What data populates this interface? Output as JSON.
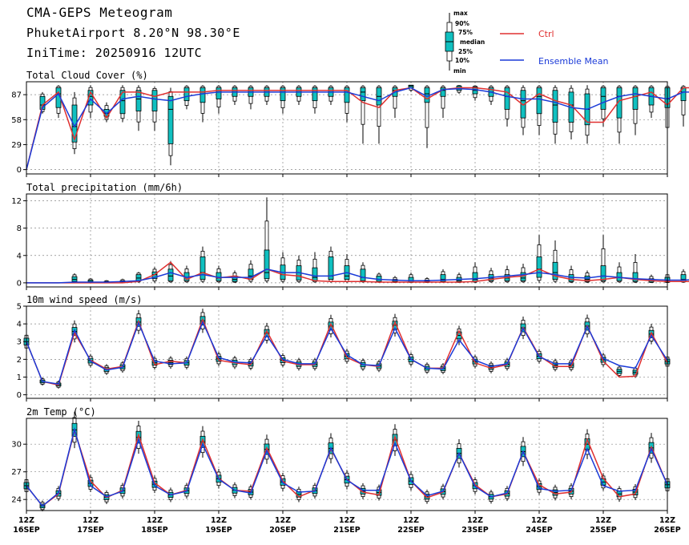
{
  "header": {
    "title": "CMA-GEPS Meteogram",
    "location": "PhuketAirport 8.20°N 98.30°E",
    "init": "IniTime: 20250916 12UTC"
  },
  "legend": {
    "box_labels": [
      "max",
      "90%",
      "75%",
      "median",
      "25%",
      "10%",
      "min"
    ],
    "ctrl_label": "Ctrl",
    "mean_label": "Ensemble Mean"
  },
  "colors": {
    "ctrl": "#e03030",
    "mean": "#1a3ad8",
    "box": "#10c0c0",
    "grid": "#888888"
  },
  "x_axis": {
    "labels": [
      [
        "12Z",
        "16SEP"
      ],
      [
        "12Z",
        "17SEP"
      ],
      [
        "12Z",
        "18SEP"
      ],
      [
        "12Z",
        "19SEP"
      ],
      [
        "12Z",
        "20SEP"
      ],
      [
        "12Z",
        "21SEP"
      ],
      [
        "12Z",
        "22SEP"
      ],
      [
        "12Z",
        "23SEP"
      ],
      [
        "12Z",
        "24SEP"
      ],
      [
        "12Z",
        "25SEP"
      ],
      [
        "12Z",
        "26SEP"
      ]
    ]
  },
  "chart_data": [
    {
      "type": "line",
      "title": "Total Cloud Cover (%)",
      "ylim": [
        -5,
        102
      ],
      "yticks": [
        0,
        29,
        58,
        87
      ],
      "ctrl": [
        0,
        75,
        90,
        35,
        90,
        60,
        90,
        90,
        85,
        90,
        90,
        90,
        92,
        92,
        92,
        92,
        92,
        92,
        92,
        92,
        92,
        78,
        72,
        92,
        95,
        82,
        93,
        95,
        95,
        93,
        90,
        75,
        88,
        80,
        75,
        55,
        55,
        80,
        85,
        90,
        75,
        95,
        95,
        95,
        95
      ],
      "mean": [
        0,
        72,
        88,
        50,
        82,
        65,
        82,
        85,
        82,
        80,
        85,
        88,
        90,
        90,
        90,
        90,
        90,
        90,
        90,
        90,
        90,
        85,
        80,
        90,
        95,
        85,
        93,
        94,
        93,
        90,
        85,
        82,
        82,
        78,
        72,
        70,
        78,
        85,
        88,
        85,
        82,
        90,
        90,
        88,
        85
      ],
      "boxes": [
        [
          null,
          null,
          null,
          null,
          null
        ],
        [
          65,
          70,
          75,
          85,
          90
        ],
        [
          60,
          72,
          88,
          95,
          98
        ],
        [
          18,
          32,
          50,
          75,
          90
        ],
        [
          60,
          75,
          85,
          92,
          98
        ],
        [
          55,
          62,
          65,
          70,
          78
        ],
        [
          55,
          65,
          80,
          92,
          98
        ],
        [
          45,
          68,
          82,
          92,
          98
        ],
        [
          45,
          68,
          82,
          92,
          96
        ],
        [
          5,
          30,
          70,
          85,
          95
        ],
        [
          70,
          80,
          90,
          95,
          98
        ],
        [
          55,
          78,
          90,
          95,
          98
        ],
        [
          65,
          82,
          90,
          95,
          98
        ],
        [
          75,
          85,
          90,
          95,
          98
        ],
        [
          70,
          85,
          90,
          95,
          98
        ],
        [
          75,
          85,
          90,
          95,
          98
        ],
        [
          65,
          80,
          90,
          95,
          98
        ],
        [
          75,
          85,
          90,
          95,
          98
        ],
        [
          65,
          80,
          90,
          95,
          98
        ],
        [
          75,
          85,
          90,
          95,
          98
        ],
        [
          55,
          78,
          90,
          95,
          98
        ],
        [
          30,
          80,
          90,
          95,
          98
        ],
        [
          30,
          75,
          85,
          95,
          98
        ],
        [
          60,
          85,
          92,
          95,
          98
        ],
        [
          90,
          95,
          97,
          98,
          98
        ],
        [
          25,
          78,
          88,
          95,
          98
        ],
        [
          60,
          85,
          92,
          95,
          98
        ],
        [
          88,
          92,
          95,
          97,
          98
        ],
        [
          80,
          88,
          92,
          96,
          98
        ],
        [
          75,
          85,
          90,
          95,
          98
        ],
        [
          50,
          70,
          85,
          95,
          98
        ],
        [
          40,
          60,
          80,
          92,
          98
        ],
        [
          40,
          65,
          85,
          95,
          98
        ],
        [
          30,
          55,
          75,
          92,
          98
        ],
        [
          35,
          55,
          75,
          90,
          98
        ],
        [
          30,
          52,
          70,
          88,
          98
        ],
        [
          50,
          70,
          85,
          95,
          98
        ],
        [
          30,
          60,
          85,
          95,
          98
        ],
        [
          40,
          70,
          85,
          95,
          98
        ],
        [
          60,
          75,
          85,
          95,
          98
        ],
        [
          30,
          72,
          82,
          95,
          98
        ],
        [
          50,
          80,
          90,
          95,
          98
        ],
        [
          50,
          82,
          90,
          96,
          98
        ],
        [
          65,
          85,
          90,
          95,
          98
        ],
        [
          65,
          75,
          85,
          95,
          98
        ]
      ]
    },
    {
      "type": "line",
      "title": "Total precipitation (mm/6h)",
      "ylim": [
        -0.6,
        13
      ],
      "yticks": [
        0,
        4,
        8,
        12
      ],
      "ctrl": [
        0,
        0,
        0,
        0,
        0,
        0,
        0,
        0.2,
        1.2,
        3,
        0.5,
        1.5,
        0.7,
        1,
        0.5,
        2,
        1.2,
        1,
        0.3,
        0.2,
        0.2,
        0.2,
        0.1,
        0.1,
        0.1,
        0.1,
        0.1,
        0.1,
        0.2,
        0.5,
        0.8,
        1,
        2,
        1,
        0.5,
        0.3,
        0.5,
        0.8,
        0.5,
        0.3,
        0.2,
        0.2,
        0.2,
        0.3,
        0.3
      ],
      "mean": [
        0,
        0,
        0,
        0.1,
        0.1,
        0.1,
        0.2,
        0.3,
        0.8,
        1.5,
        0.8,
        1.2,
        0.8,
        0.8,
        0.8,
        2,
        1.5,
        1.5,
        1,
        1,
        1.5,
        0.8,
        0.5,
        0.4,
        0.3,
        0.3,
        0.4,
        0.5,
        0.6,
        0.8,
        1,
        1.2,
        1.5,
        1.2,
        0.8,
        0.7,
        1,
        0.8,
        0.6,
        0.5,
        0.4,
        0.4,
        0.5,
        0.5,
        0.5
      ],
      "boxes": [
        [
          null,
          null,
          null,
          null,
          null
        ],
        [
          null,
          null,
          null,
          null,
          null
        ],
        [
          null,
          null,
          null,
          null,
          null
        ],
        [
          0,
          0.2,
          0.5,
          0.9,
          1.4
        ],
        [
          0,
          0.05,
          0.2,
          0.4,
          0.7
        ],
        [
          0,
          0.05,
          0.1,
          0.2,
          0.4
        ],
        [
          0,
          0.05,
          0.1,
          0.3,
          0.6
        ],
        [
          0,
          0.3,
          0.7,
          1.2,
          1.6
        ],
        [
          0,
          0.6,
          1.2,
          1.6,
          2.3
        ],
        [
          0,
          0.3,
          1,
          2,
          3.2
        ],
        [
          0,
          0.3,
          0.8,
          1.5,
          2.5
        ],
        [
          0,
          0.5,
          1.5,
          3.8,
          5.3
        ],
        [
          0,
          0.3,
          0.7,
          1.5,
          2.5
        ],
        [
          0,
          0.2,
          0.5,
          1,
          1.8
        ],
        [
          0,
          0.5,
          1,
          2,
          3.3
        ],
        [
          0,
          0.6,
          1.5,
          4.8,
          12.5
        ],
        [
          0,
          0.5,
          1.2,
          2.6,
          4.5
        ],
        [
          0,
          0.4,
          1,
          2.5,
          4
        ],
        [
          0,
          0.3,
          0.8,
          2.2,
          4.5
        ],
        [
          0,
          0.5,
          1,
          3.8,
          5.3
        ],
        [
          0,
          0.5,
          1,
          2.5,
          4.2
        ],
        [
          0,
          0.3,
          0.8,
          2,
          3
        ],
        [
          0,
          0.2,
          0.5,
          1,
          1.5
        ],
        [
          0,
          0.1,
          0.2,
          0.5,
          1
        ],
        [
          0,
          0.1,
          0.3,
          0.8,
          1.5
        ],
        [
          0,
          0.1,
          0.2,
          0.4,
          0.8
        ],
        [
          0,
          0.2,
          0.5,
          1.2,
          2
        ],
        [
          0,
          0.1,
          0.3,
          0.8,
          1.5
        ],
        [
          0,
          0.2,
          0.5,
          1.5,
          3
        ],
        [
          0,
          0.3,
          0.7,
          1.2,
          2.2
        ],
        [
          0,
          0.3,
          0.7,
          1.2,
          2.5
        ],
        [
          0,
          0.3,
          0.7,
          1.5,
          2.8
        ],
        [
          0,
          0.8,
          2,
          3.8,
          7
        ],
        [
          0,
          0.5,
          1.5,
          3,
          6.2
        ],
        [
          0,
          0.2,
          0.5,
          1.2,
          2.5
        ],
        [
          0,
          0.2,
          0.5,
          1,
          1.8
        ],
        [
          0,
          0.3,
          1,
          2.5,
          7
        ],
        [
          0,
          0.3,
          0.8,
          1.5,
          3
        ],
        [
          0,
          0.2,
          0.5,
          1.5,
          4.2
        ],
        [
          0,
          0.1,
          0.3,
          0.6,
          1.2
        ],
        [
          0,
          0.1,
          0.3,
          0.8,
          1.5
        ],
        [
          0,
          0.2,
          0.5,
          1.2,
          2
        ],
        [
          0,
          0.2,
          0.5,
          1,
          1.5
        ],
        [
          0,
          0.2,
          0.4,
          0.8,
          1.2
        ],
        [
          0,
          0.2,
          0.5,
          0.9,
          1.2
        ]
      ]
    },
    {
      "type": "line",
      "title": "10m wind speed (m/s)",
      "ylim": [
        -0.2,
        5
      ],
      "yticks": [
        0,
        1,
        2,
        3,
        4,
        5
      ],
      "ctrl": [
        3,
        0.75,
        0.55,
        3.5,
        1.95,
        1.45,
        1.6,
        4.15,
        1.7,
        1.9,
        1.8,
        4.25,
        1.95,
        1.8,
        1.7,
        3.6,
        1.9,
        1.7,
        1.7,
        4,
        2.1,
        1.7,
        1.6,
        4.1,
        2,
        1.5,
        1.5,
        3.6,
        1.8,
        1.5,
        1.7,
        3.8,
        2.2,
        1.6,
        1.6,
        3.9,
        1.9,
        1,
        1.05,
        3.5,
        1.8
      ],
      "mean": [
        3,
        0.75,
        0.6,
        3.65,
        1.9,
        1.4,
        1.55,
        4.05,
        1.9,
        1.75,
        1.8,
        4.1,
        2.1,
        1.85,
        1.8,
        3.35,
        2,
        1.75,
        1.75,
        3.75,
        2.25,
        1.7,
        1.65,
        3.75,
        2,
        1.5,
        1.45,
        3.1,
        1.95,
        1.6,
        1.75,
        3.75,
        2.15,
        1.75,
        1.75,
        3.85,
        2.05,
        1.65,
        1.5,
        3.35,
        1.95
      ]
    },
    {
      "type": "line",
      "title": "2m Temp (°C)",
      "ylim": [
        22.8,
        32.8
      ],
      "yticks": [
        24,
        27,
        30
      ],
      "ctrl": [
        25.5,
        23.3,
        24.6,
        31.5,
        26,
        24.2,
        25,
        31,
        25.8,
        24.5,
        25,
        30.5,
        26.3,
        25,
        24.9,
        29.6,
        26,
        24.3,
        25,
        29.5,
        26.2,
        24.8,
        24.5,
        30.8,
        26,
        24.2,
        24.8,
        29,
        25.6,
        24.3,
        24.6,
        29.2,
        25.6,
        24.6,
        24.8,
        30.5,
        26.3,
        24.3,
        24.6,
        29.7,
        25.6
      ],
      "mean": [
        25.5,
        23.3,
        24.7,
        31.6,
        25.5,
        24.3,
        24.9,
        30.5,
        25.5,
        24.5,
        24.9,
        30,
        26.2,
        25,
        24.7,
        29.3,
        25.8,
        24.8,
        24.9,
        29.6,
        26.1,
        25,
        25,
        30.1,
        26,
        24.4,
        24.9,
        29,
        25.4,
        24.3,
        24.7,
        29.2,
        25.2,
        24.9,
        25,
        29.5,
        25.5,
        24.9,
        25,
        29.5,
        25.6
      ]
    }
  ]
}
